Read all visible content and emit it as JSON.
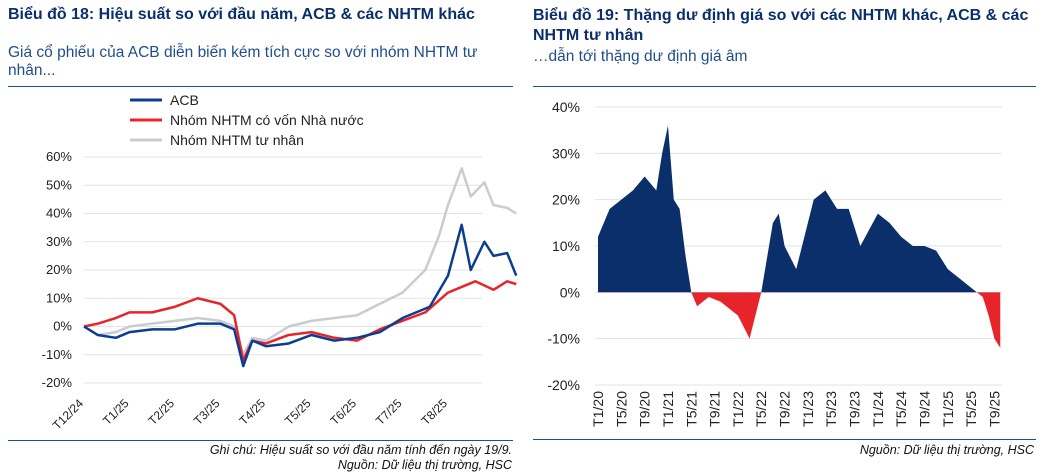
{
  "chart_data": [
    {
      "type": "line",
      "title": "Biểu đồ 18: Hiệu suất so với đầu năm, ACB & các NHTM khác",
      "subtitle": "Giá cổ phiếu của ACB diễn biến kém tích cực so với nhóm NHTM tư nhân...",
      "xlabel": "",
      "ylabel": "",
      "ylim": [
        -20,
        60
      ],
      "yticks": [
        "-20%",
        "-10%",
        "0%",
        "10%",
        "20%",
        "30%",
        "40%",
        "50%",
        "60%"
      ],
      "xticks": [
        "T12/24",
        "T1/25",
        "T2/25",
        "T3/25",
        "T4/25",
        "T5/25",
        "T6/25",
        "T7/25",
        "T8/25"
      ],
      "legend": "top-left",
      "series": [
        {
          "name": "ACB",
          "color": "#0b3d91",
          "points": [
            [
              0,
              0
            ],
            [
              0.3,
              -3
            ],
            [
              0.7,
              -4
            ],
            [
              1,
              -2
            ],
            [
              1.5,
              -1
            ],
            [
              2,
              -1
            ],
            [
              2.5,
              1
            ],
            [
              3,
              1
            ],
            [
              3.3,
              -1
            ],
            [
              3.5,
              -14
            ],
            [
              3.7,
              -5
            ],
            [
              4,
              -7
            ],
            [
              4.5,
              -6
            ],
            [
              5,
              -3
            ],
            [
              5.5,
              -5
            ],
            [
              6,
              -4
            ],
            [
              6.5,
              -2
            ],
            [
              7,
              3
            ],
            [
              7.3,
              5
            ],
            [
              7.6,
              7
            ],
            [
              8,
              18
            ],
            [
              8.3,
              36
            ],
            [
              8.5,
              20
            ],
            [
              8.8,
              30
            ],
            [
              9,
              25
            ],
            [
              9.3,
              26
            ],
            [
              9.5,
              18
            ]
          ]
        },
        {
          "name": "Nhóm NHTM có vốn Nhà nước",
          "color": "#e8242b",
          "points": [
            [
              0,
              0
            ],
            [
              0.3,
              1
            ],
            [
              0.7,
              3
            ],
            [
              1,
              5
            ],
            [
              1.5,
              5
            ],
            [
              2,
              7
            ],
            [
              2.5,
              10
            ],
            [
              3,
              8
            ],
            [
              3.3,
              4
            ],
            [
              3.5,
              -12
            ],
            [
              3.7,
              -5
            ],
            [
              4,
              -6
            ],
            [
              4.5,
              -3
            ],
            [
              5,
              -2
            ],
            [
              5.5,
              -4
            ],
            [
              6,
              -5
            ],
            [
              6.5,
              -1
            ],
            [
              7,
              2
            ],
            [
              7.5,
              5
            ],
            [
              8,
              12
            ],
            [
              8.3,
              14
            ],
            [
              8.6,
              16
            ],
            [
              9,
              13
            ],
            [
              9.3,
              16
            ],
            [
              9.5,
              15
            ]
          ]
        },
        {
          "name": "Nhóm NHTM tư nhân",
          "color": "#c9ccd1",
          "points": [
            [
              0,
              0
            ],
            [
              0.3,
              -3
            ],
            [
              0.7,
              -2
            ],
            [
              1,
              0
            ],
            [
              1.5,
              1
            ],
            [
              2,
              2
            ],
            [
              2.5,
              3
            ],
            [
              3,
              2
            ],
            [
              3.3,
              0
            ],
            [
              3.5,
              -10
            ],
            [
              3.7,
              -4
            ],
            [
              4,
              -5
            ],
            [
              4.5,
              0
            ],
            [
              5,
              2
            ],
            [
              5.5,
              3
            ],
            [
              6,
              4
            ],
            [
              6.5,
              8
            ],
            [
              7,
              12
            ],
            [
              7.5,
              20
            ],
            [
              7.8,
              32
            ],
            [
              8,
              43
            ],
            [
              8.3,
              56
            ],
            [
              8.5,
              46
            ],
            [
              8.8,
              51
            ],
            [
              9,
              43
            ],
            [
              9.3,
              42
            ],
            [
              9.5,
              40
            ]
          ]
        }
      ],
      "notes": [
        "Ghi chú: Hiệu suất so với đầu năm tính đến ngày 19/9.",
        "Nguồn: Dữ liệu thị trường, HSC"
      ]
    },
    {
      "type": "area",
      "title": "Biểu đồ 19: Thặng dư định giá so với các NHTM khác, ACB & các NHTM tư nhân",
      "subtitle": "…dẫn tới thặng dư định giá âm",
      "ylim": [
        -20,
        40
      ],
      "yticks": [
        "-20%",
        "-10%",
        "0%",
        "10%",
        "20%",
        "30%",
        "40%"
      ],
      "xticks": [
        "T1/20",
        "T5/20",
        "T9/20",
        "T1/21",
        "T5/21",
        "T9/21",
        "T1/22",
        "T5/22",
        "T9/22",
        "T1/23",
        "T5/23",
        "T9/23",
        "T1/24",
        "T5/24",
        "T9/24",
        "T1/25",
        "T5/25",
        "T9/25"
      ],
      "positive_color": "#0b2f6b",
      "negative_color": "#e8242b",
      "points": [
        [
          0,
          12
        ],
        [
          2,
          18
        ],
        [
          4,
          20
        ],
        [
          6,
          22
        ],
        [
          8,
          25
        ],
        [
          10,
          22
        ],
        [
          11,
          30
        ],
        [
          12,
          36
        ],
        [
          13,
          20
        ],
        [
          14,
          18
        ],
        [
          15,
          8
        ],
        [
          16,
          0
        ],
        [
          17,
          -3
        ],
        [
          19,
          -1
        ],
        [
          21,
          -2
        ],
        [
          24,
          -5
        ],
        [
          26,
          -10
        ],
        [
          27,
          -5
        ],
        [
          28,
          0
        ],
        [
          30,
          15
        ],
        [
          31,
          17
        ],
        [
          32,
          10
        ],
        [
          34,
          5
        ],
        [
          36,
          15
        ],
        [
          37,
          20
        ],
        [
          39,
          22
        ],
        [
          41,
          18
        ],
        [
          43,
          18
        ],
        [
          45,
          10
        ],
        [
          48,
          17
        ],
        [
          50,
          15
        ],
        [
          52,
          12
        ],
        [
          54,
          10
        ],
        [
          56,
          10
        ],
        [
          58,
          9
        ],
        [
          60,
          5
        ],
        [
          62,
          3
        ],
        [
          64,
          1
        ],
        [
          65,
          0
        ],
        [
          66,
          -1
        ],
        [
          67,
          -5
        ],
        [
          68,
          -10
        ],
        [
          69,
          -12
        ]
      ],
      "notes": [
        "Nguồn: Dữ liệu thị trường, HSC"
      ]
    }
  ]
}
